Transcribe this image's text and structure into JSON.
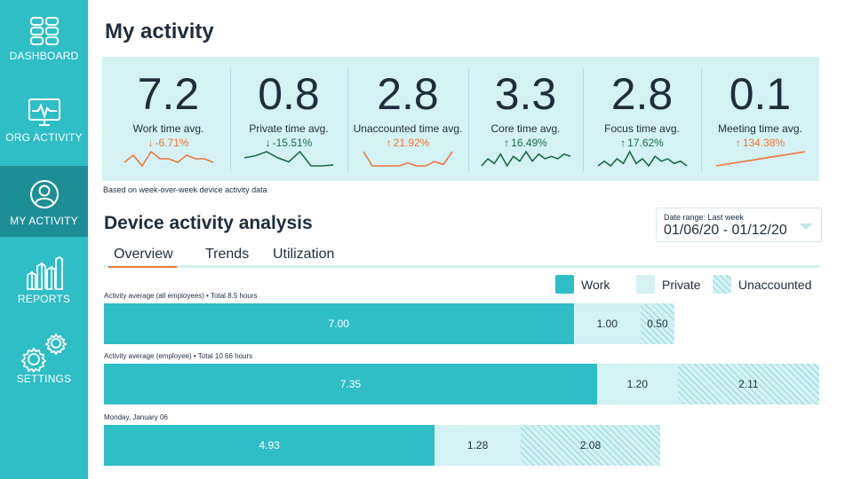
{
  "sidebar": {
    "items": [
      {
        "label": "DASHBOARD",
        "icon": "dashboard-icon"
      },
      {
        "label": "ORG ACTIVITY",
        "icon": "monitor-activity-icon"
      },
      {
        "label": "MY ACTIVITY",
        "icon": "user-icon",
        "active": true
      },
      {
        "label": "REPORTS",
        "icon": "bar-chart-icon"
      },
      {
        "label": "SETTINGS",
        "icon": "gears-icon"
      }
    ]
  },
  "header": {
    "title": "My activity"
  },
  "kpis": [
    {
      "value": "7.2",
      "name": "Work time avg.",
      "change": "-6.71%",
      "direction": "down",
      "tone": "negative",
      "spark": [
        3,
        5,
        2,
        6,
        4,
        4,
        3,
        5,
        4,
        4,
        3
      ]
    },
    {
      "value": "0.8",
      "name": "Private time avg.",
      "change": "-15.51%",
      "direction": "down",
      "tone": "positive",
      "spark": [
        5,
        6,
        8,
        5,
        3,
        8,
        1,
        1,
        1.5
      ]
    },
    {
      "value": "2.8",
      "name": "Unaccounted time avg.",
      "change": "21.92%",
      "direction": "up",
      "tone": "negative",
      "spark": [
        3,
        2,
        2,
        2,
        2,
        2.2,
        2,
        2,
        2.3,
        2.1,
        3
      ]
    },
    {
      "value": "3.3",
      "name": "Core time avg.",
      "change": "16.49%",
      "direction": "up",
      "tone": "positive",
      "spark": [
        2,
        5,
        3,
        7,
        2,
        6,
        4,
        8,
        4,
        7,
        5,
        6,
        5,
        7,
        6
      ]
    },
    {
      "value": "2.8",
      "name": "Focus time avg.",
      "change": "17.62%",
      "direction": "up",
      "tone": "positive",
      "spark": [
        2,
        4,
        2,
        5,
        3,
        8,
        3,
        5,
        2,
        6,
        4,
        5,
        3,
        4,
        2
      ]
    },
    {
      "value": "0.1",
      "name": "Meeting time avg.",
      "change": "134.38%",
      "direction": "up",
      "tone": "negative",
      "spark": [
        1,
        1.5,
        2,
        2.5,
        3,
        3.5,
        4,
        4.5,
        5,
        5.5
      ]
    }
  ],
  "note": "Based on week-over-week device activity data",
  "analysis": {
    "title": "Device activity analysis",
    "date_range_label": "Date range: Last week",
    "date_range_value": "01/06/20 - 01/12/20",
    "tabs": [
      "Overview",
      "Trends",
      "Utilization"
    ],
    "active_tab": "Overview",
    "legend": [
      "Work",
      "Private",
      "Unaccounted"
    ]
  },
  "bars": [
    {
      "label": "Activity average (all employees) • Total 8.5 hours",
      "work": 7.0,
      "private": 1.0,
      "unaccounted": 0.5
    },
    {
      "label": "Activity average (employee) • Total 10.66 hours",
      "work": 7.35,
      "private": 1.2,
      "unaccounted": 2.11
    },
    {
      "label": "Monday, January 06",
      "work": 4.93,
      "private": 1.28,
      "unaccounted": 2.08
    }
  ],
  "colors": {
    "sidebar": "#2fbdc6",
    "sidebar_active": "#1e8e96",
    "work": "#2fbdc6",
    "private": "#d4f1f3",
    "negative": "#f0763a",
    "positive": "#1b6b45",
    "tab_underline": "#f0763a"
  }
}
